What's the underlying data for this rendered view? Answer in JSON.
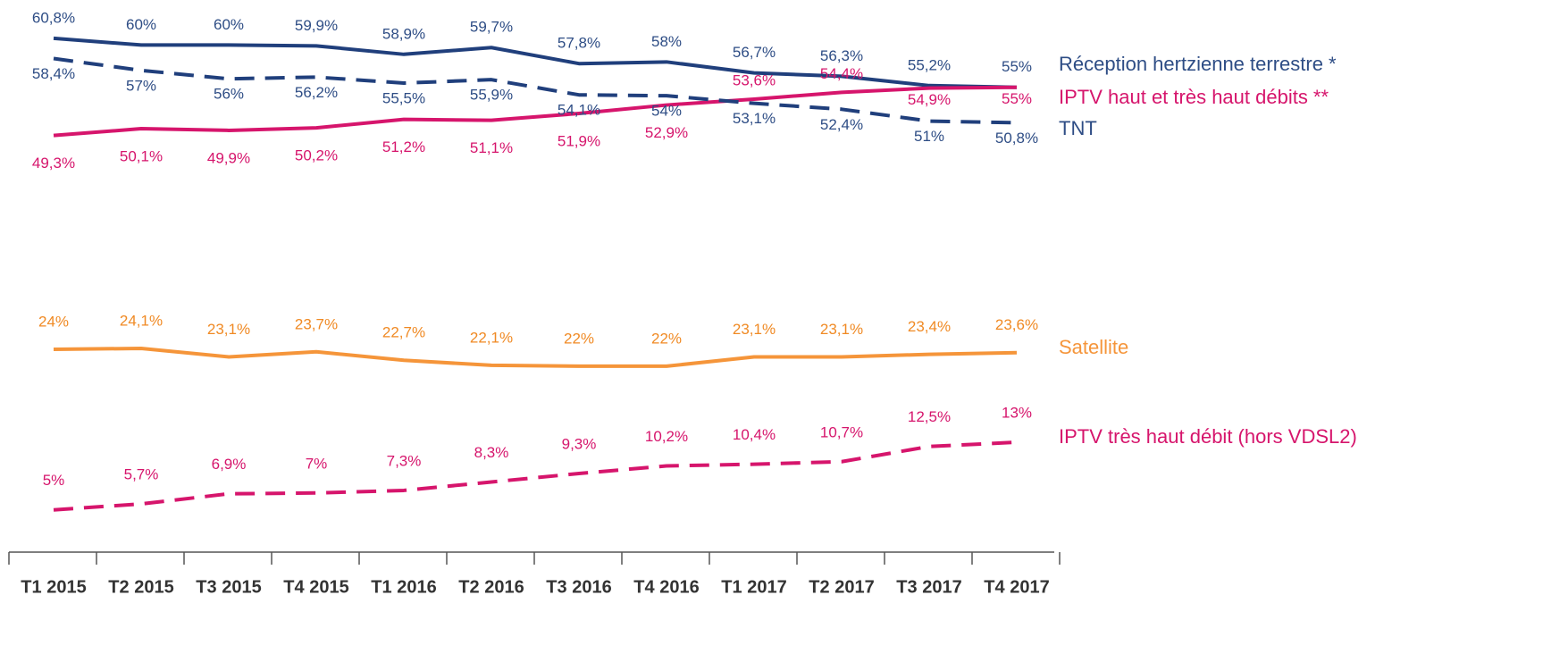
{
  "chart_data": {
    "type": "line",
    "categories": [
      "T1 2015",
      "T2 2015",
      "T3 2015",
      "T4 2015",
      "T1 2016",
      "T2 2016",
      "T3 2016",
      "T4 2016",
      "T1 2017",
      "T2 2017",
      "T3 2017",
      "T4 2017"
    ],
    "series": [
      {
        "name": "Réception hertzienne terrestre *",
        "color": "#203f7c",
        "dashed": false,
        "values": [
          60.8,
          60,
          60,
          59.9,
          58.9,
          59.7,
          57.8,
          58,
          56.7,
          56.3,
          55.2,
          55
        ],
        "value_labels": [
          "60,8%",
          "60%",
          "60%",
          "59,9%",
          "58,9%",
          "59,7%",
          "57,8%",
          "58%",
          "56,7%",
          "56,3%",
          "55,2%",
          "55%"
        ]
      },
      {
        "name": "IPTV haut et très haut débits **",
        "color": "#d6156c",
        "dashed": false,
        "values": [
          49.3,
          50.1,
          49.9,
          50.2,
          51.2,
          51.1,
          51.9,
          52.9,
          53.6,
          54.4,
          54.9,
          55
        ],
        "value_labels": [
          "49,3%",
          "50,1%",
          "49,9%",
          "50,2%",
          "51,2%",
          "51,1%",
          "51,9%",
          "52,9%",
          "53,6%",
          "54,4%",
          "54,9%",
          "55%"
        ]
      },
      {
        "name": "TNT",
        "color": "#203f7c",
        "dashed": true,
        "values": [
          58.4,
          57,
          56,
          56.2,
          55.5,
          55.9,
          54.1,
          54,
          53.1,
          52.4,
          51,
          50.8
        ],
        "value_labels": [
          "58,4%",
          "57%",
          "56%",
          "56,2%",
          "55,5%",
          "55,9%",
          "54,1%",
          "54%",
          "53,1%",
          "52,4%",
          "51%",
          "50,8%"
        ]
      },
      {
        "name": "Satellite",
        "color": "#f5953a",
        "dashed": false,
        "values": [
          24,
          24.1,
          23.1,
          23.7,
          22.7,
          22.1,
          22,
          22,
          23.1,
          23.1,
          23.4,
          23.6
        ],
        "value_labels": [
          "24%",
          "24,1%",
          "23,1%",
          "23,7%",
          "22,7%",
          "22,1%",
          "22%",
          "22%",
          "23,1%",
          "23,1%",
          "23,4%",
          "23,6%"
        ]
      },
      {
        "name": "IPTV très haut débit (hors VDSL2)",
        "color": "#d6156c",
        "dashed": true,
        "values": [
          5,
          5.7,
          6.9,
          7,
          7.3,
          8.3,
          9.3,
          10.2,
          10.4,
          10.7,
          12.5,
          13
        ],
        "value_labels": [
          "5%",
          "5,7%",
          "6,9%",
          "7%",
          "7,3%",
          "8,3%",
          "9,3%",
          "10,2%",
          "10,4%",
          "10,7%",
          "12,5%",
          "13%"
        ]
      }
    ]
  }
}
